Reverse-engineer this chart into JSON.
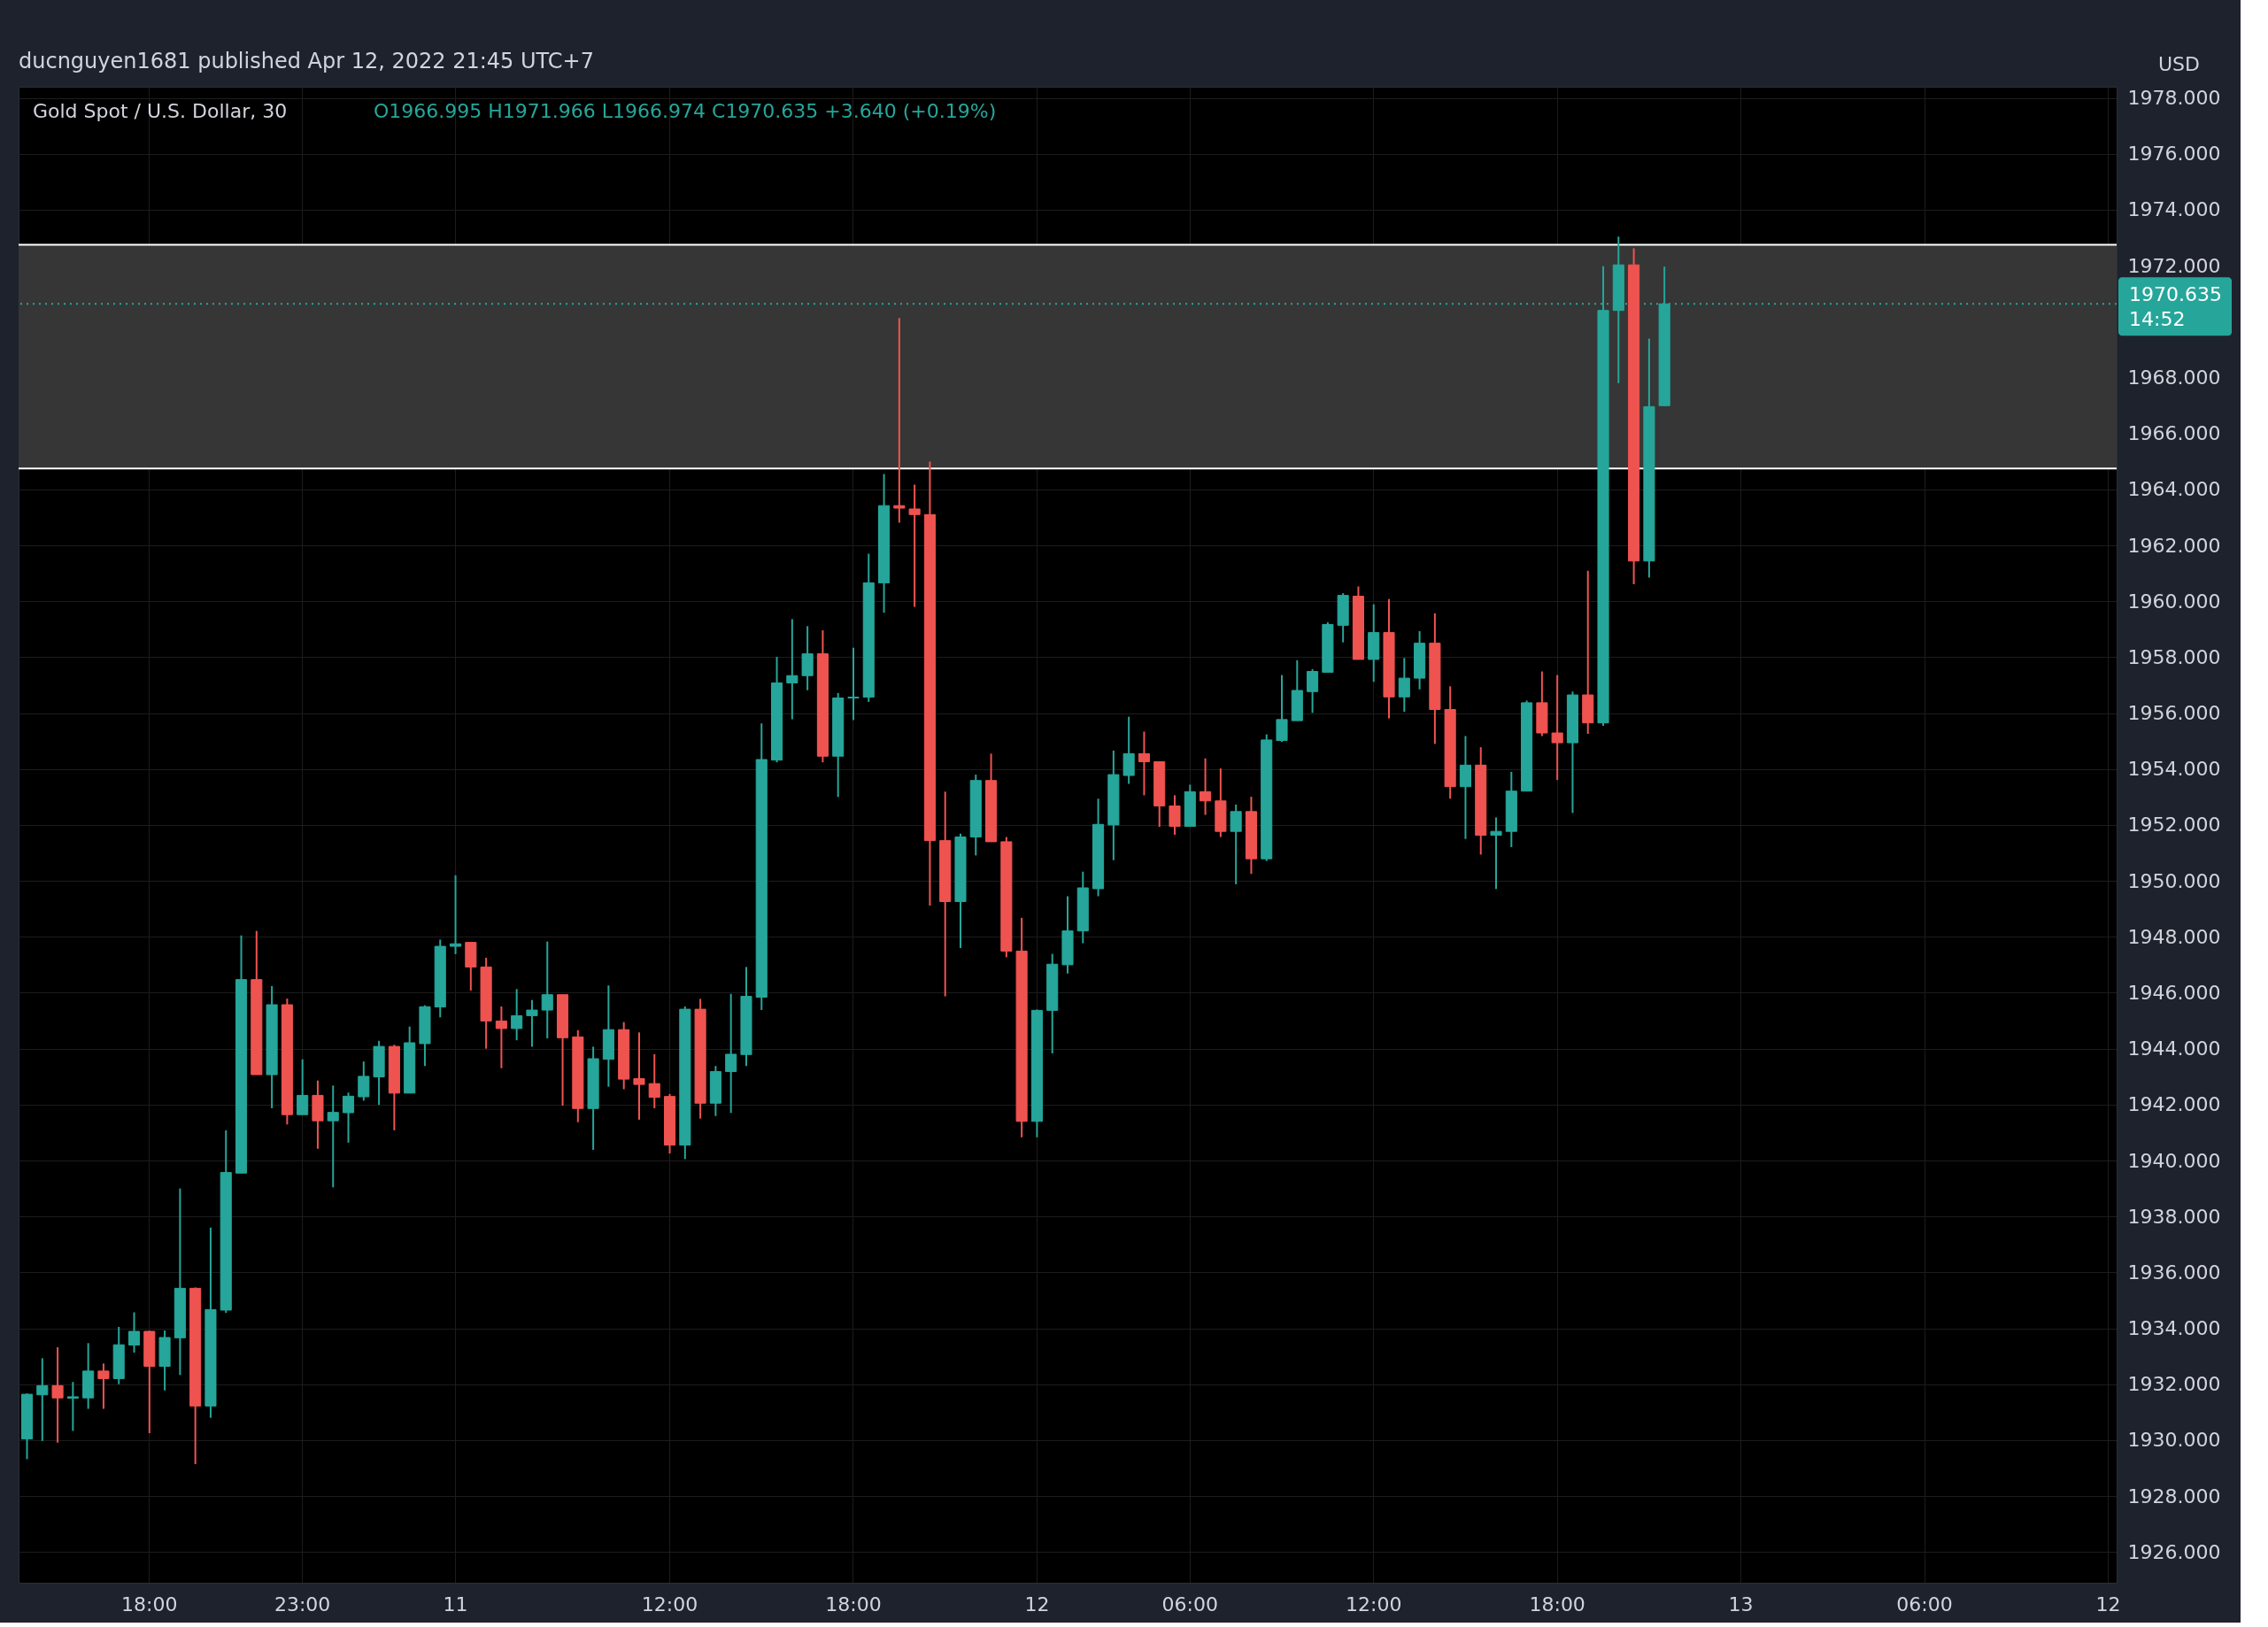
{
  "chart_data": {
    "type": "candlestick",
    "title": "Gold Spot / U.S. Dollar, 30",
    "subtitle": "O1966.995  H1971.966  L1966.974  C1970.635  +3.640 (+0.19%)",
    "ylabel": "USD",
    "annotations": [
      "ducnguyen1681 published Apr 12, 2022 21:45 UTC+7"
    ],
    "categories": [
      null,
      null,
      null,
      null,
      null,
      null,
      null,
      null,
      "18:00",
      null,
      null,
      null,
      null,
      null,
      null,
      null,
      null,
      null,
      "23:00",
      null,
      null,
      null,
      null,
      null,
      null,
      null,
      null,
      null,
      "11",
      null,
      null,
      null,
      null,
      null,
      null,
      null,
      null,
      null,
      null,
      null,
      null,
      null,
      "12:00",
      null,
      null,
      null,
      null,
      null,
      null,
      null,
      null,
      null,
      null,
      null,
      "18:00",
      null,
      null,
      null,
      null,
      null,
      null,
      null,
      null,
      null,
      null,
      null,
      "12",
      null,
      null,
      null,
      null,
      null,
      null,
      null,
      null,
      null,
      "06:00",
      null,
      null,
      null,
      null,
      null,
      null,
      null,
      null,
      null,
      null,
      null,
      "12:00",
      null,
      null,
      null,
      null,
      null,
      null,
      null,
      null,
      null,
      null,
      null,
      "18:00",
      null,
      null,
      null,
      null,
      null,
      null,
      null,
      null,
      null,
      null,
      null,
      "13",
      null,
      null,
      null,
      null,
      null,
      null,
      null,
      null,
      null,
      null,
      null,
      "06:00",
      null,
      null,
      null,
      null,
      null,
      null,
      null,
      null,
      null,
      null,
      null,
      "12"
    ],
    "ohlc": [
      [
        1930.04,
        1931.67,
        1929.32,
        1931.64
      ],
      [
        1931.62,
        1932.93,
        1929.97,
        1931.95
      ],
      [
        1931.95,
        1933.32,
        1929.91,
        1931.51
      ],
      [
        1931.5,
        1932.08,
        1930.33,
        1931.55
      ],
      [
        1931.51,
        1933.47,
        1931.12,
        1932.47
      ],
      [
        1932.47,
        1932.74,
        1931.12,
        1932.2
      ],
      [
        1932.2,
        1934.05,
        1932.0,
        1933.41
      ],
      [
        1933.4,
        1934.57,
        1933.13,
        1933.89
      ],
      [
        1933.89,
        1933.92,
        1930.25,
        1932.64
      ],
      [
        1932.64,
        1933.92,
        1931.78,
        1933.67
      ],
      [
        1933.66,
        1939.0,
        1932.33,
        1935.43
      ],
      [
        1935.43,
        1935.46,
        1929.14,
        1931.22
      ],
      [
        1931.22,
        1937.6,
        1930.8,
        1934.67
      ],
      [
        1934.65,
        1941.08,
        1934.55,
        1939.57
      ],
      [
        1939.55,
        1948.05,
        1939.55,
        1946.47
      ],
      [
        1946.47,
        1948.21,
        1943.07,
        1943.07
      ],
      [
        1943.07,
        1946.24,
        1941.87,
        1945.57
      ],
      [
        1945.57,
        1945.79,
        1941.29,
        1941.64
      ],
      [
        1941.64,
        1943.62,
        1941.64,
        1942.33
      ],
      [
        1942.33,
        1942.86,
        1940.42,
        1941.42
      ],
      [
        1941.42,
        1942.68,
        1939.04,
        1941.72
      ],
      [
        1941.71,
        1942.43,
        1940.64,
        1942.3
      ],
      [
        1942.28,
        1943.54,
        1942.14,
        1943.01
      ],
      [
        1942.99,
        1944.28,
        1941.99,
        1944.08
      ],
      [
        1944.08,
        1944.14,
        1941.08,
        1942.41
      ],
      [
        1942.41,
        1944.79,
        1942.41,
        1944.21
      ],
      [
        1944.18,
        1945.55,
        1943.38,
        1945.5
      ],
      [
        1945.49,
        1947.9,
        1945.12,
        1947.66
      ],
      [
        1947.66,
        1950.2,
        1947.38,
        1947.75
      ],
      [
        1947.8,
        1947.8,
        1946.08,
        1946.92
      ],
      [
        1946.92,
        1947.25,
        1944.0,
        1944.99
      ],
      [
        1944.99,
        1945.51,
        1943.3,
        1944.72
      ],
      [
        1944.72,
        1946.13,
        1944.3,
        1945.18
      ],
      [
        1945.18,
        1945.74,
        1944.07,
        1945.38
      ],
      [
        1945.38,
        1947.83,
        1944.37,
        1945.93
      ],
      [
        1945.93,
        1945.93,
        1941.96,
        1944.39
      ],
      [
        1944.42,
        1944.66,
        1941.37,
        1941.86
      ],
      [
        1941.86,
        1944.07,
        1940.38,
        1943.64
      ],
      [
        1943.62,
        1946.26,
        1942.64,
        1944.68
      ],
      [
        1944.68,
        1944.95,
        1942.55,
        1942.91
      ],
      [
        1942.93,
        1944.58,
        1941.46,
        1942.72
      ],
      [
        1942.75,
        1943.8,
        1941.87,
        1942.26
      ],
      [
        1942.29,
        1942.38,
        1940.25,
        1940.55
      ],
      [
        1940.55,
        1945.51,
        1940.05,
        1945.41
      ],
      [
        1945.41,
        1945.78,
        1941.5,
        1942.05
      ],
      [
        1942.05,
        1943.38,
        1941.59,
        1943.18
      ],
      [
        1943.18,
        1945.96,
        1941.7,
        1943.8
      ],
      [
        1943.79,
        1946.92,
        1943.38,
        1945.87
      ],
      [
        1945.84,
        1955.63,
        1945.38,
        1954.34
      ],
      [
        1954.32,
        1958.01,
        1954.24,
        1957.08
      ],
      [
        1957.08,
        1959.36,
        1955.78,
        1957.34
      ],
      [
        1957.34,
        1959.11,
        1956.82,
        1958.12
      ],
      [
        1958.12,
        1958.96,
        1954.24,
        1954.46
      ],
      [
        1954.46,
        1956.72,
        1953.0,
        1956.54
      ],
      [
        1956.54,
        1958.34,
        1955.75,
        1956.57
      ],
      [
        1956.57,
        1961.7,
        1956.4,
        1960.66
      ],
      [
        1960.66,
        1964.55,
        1959.59,
        1963.42
      ],
      [
        1963.42,
        1970.13,
        1962.81,
        1963.33
      ],
      [
        1963.3,
        1964.17,
        1959.8,
        1963.1
      ],
      [
        1963.1,
        1964.99,
        1949.12,
        1951.44
      ],
      [
        1951.44,
        1953.19,
        1945.87,
        1949.26
      ],
      [
        1949.26,
        1951.69,
        1947.6,
        1951.57
      ],
      [
        1951.57,
        1953.8,
        1950.91,
        1953.59
      ],
      [
        1953.59,
        1954.55,
        1951.4,
        1951.4
      ],
      [
        1951.4,
        1951.57,
        1947.27,
        1947.49
      ],
      [
        1947.49,
        1948.68,
        1940.83,
        1941.4
      ],
      [
        1941.4,
        1945.4,
        1940.83,
        1945.37
      ],
      [
        1945.37,
        1947.39,
        1943.83,
        1947.02
      ],
      [
        1947.0,
        1949.45,
        1946.69,
        1948.21
      ],
      [
        1948.21,
        1950.33,
        1947.77,
        1949.75
      ],
      [
        1949.72,
        1952.94,
        1949.45,
        1952.02
      ],
      [
        1952.0,
        1954.66,
        1950.74,
        1953.8
      ],
      [
        1953.77,
        1955.87,
        1953.47,
        1954.55
      ],
      [
        1954.55,
        1955.34,
        1953.06,
        1954.26
      ],
      [
        1954.26,
        1954.26,
        1951.93,
        1952.68
      ],
      [
        1952.68,
        1953.06,
        1951.65,
        1951.95
      ],
      [
        1951.95,
        1953.44,
        1951.95,
        1953.19
      ],
      [
        1953.19,
        1954.38,
        1952.36,
        1952.86
      ],
      [
        1952.86,
        1954.02,
        1951.57,
        1951.77
      ],
      [
        1951.77,
        1952.73,
        1949.88,
        1952.48
      ],
      [
        1952.48,
        1953.01,
        1950.25,
        1950.79
      ],
      [
        1950.79,
        1955.24,
        1950.71,
        1955.04
      ],
      [
        1955.02,
        1957.36,
        1954.97,
        1955.77
      ],
      [
        1955.73,
        1957.89,
        1955.73,
        1956.81
      ],
      [
        1956.77,
        1957.57,
        1956.01,
        1957.49
      ],
      [
        1957.46,
        1959.25,
        1957.46,
        1959.17
      ],
      [
        1959.14,
        1960.29,
        1958.53,
        1960.21
      ],
      [
        1960.18,
        1960.53,
        1957.92,
        1957.92
      ],
      [
        1957.92,
        1959.89,
        1957.12,
        1958.88
      ],
      [
        1958.88,
        1960.08,
        1955.81,
        1956.58
      ],
      [
        1956.58,
        1957.97,
        1956.05,
        1957.25
      ],
      [
        1957.25,
        1958.93,
        1956.85,
        1958.5
      ],
      [
        1958.5,
        1959.57,
        1954.9,
        1956.13
      ],
      [
        1956.13,
        1956.96,
        1952.94,
        1953.37
      ],
      [
        1953.37,
        1955.18,
        1951.5,
        1954.14
      ],
      [
        1954.14,
        1954.78,
        1950.94,
        1951.63
      ],
      [
        1951.63,
        1952.27,
        1949.71,
        1951.77
      ],
      [
        1951.77,
        1953.9,
        1951.21,
        1953.21
      ],
      [
        1953.21,
        1956.45,
        1953.21,
        1956.37
      ],
      [
        1956.37,
        1957.49,
        1955.18,
        1955.29
      ],
      [
        1955.29,
        1957.36,
        1953.61,
        1954.94
      ],
      [
        1954.94,
        1956.77,
        1952.43,
        1956.65
      ],
      [
        1956.65,
        1961.09,
        1955.26,
        1955.65
      ],
      [
        1955.65,
        1971.98,
        1955.54,
        1970.4
      ],
      [
        1970.4,
        1973.04,
        1967.8,
        1972.03
      ],
      [
        1972.03,
        1972.62,
        1960.61,
        1961.44
      ],
      [
        1961.44,
        1969.39,
        1960.85,
        1966.96
      ],
      [
        1966.995,
        1971.966,
        1966.974,
        1970.635
      ],
      null,
      null,
      null,
      null,
      null,
      null,
      null,
      null,
      null,
      null,
      null,
      null,
      null,
      null,
      null,
      null,
      null,
      null,
      null,
      null,
      null,
      null,
      null,
      null,
      null,
      null,
      null,
      null,
      null
    ],
    "colors": [
      "#26a69a",
      "#26a69a",
      "#ef5350",
      "#26a69a",
      "#26a69a",
      "#ef5350",
      "#26a69a",
      "#26a69a",
      "#ef5350",
      "#26a69a",
      "#26a69a",
      "#ef5350",
      "#26a69a",
      "#26a69a",
      "#26a69a",
      "#ef5350",
      "#26a69a",
      "#ef5350",
      "#26a69a",
      "#ef5350",
      "#26a69a",
      "#26a69a",
      "#26a69a",
      "#26a69a",
      "#ef5350",
      "#26a69a",
      "#26a69a",
      "#26a69a",
      "#26a69a",
      "#ef5350",
      "#ef5350",
      "#ef5350",
      "#26a69a",
      "#26a69a",
      "#26a69a",
      "#ef5350",
      "#ef5350",
      "#26a69a",
      "#26a69a",
      "#ef5350",
      "#ef5350",
      "#ef5350",
      "#ef5350",
      "#26a69a",
      "#ef5350",
      "#26a69a",
      "#26a69a",
      "#26a69a",
      "#26a69a",
      "#26a69a",
      "#26a69a",
      "#26a69a",
      "#ef5350",
      "#26a69a",
      "#26a69a",
      "#26a69a",
      "#26a69a",
      "#ef5350",
      "#ef5350",
      "#ef5350",
      "#ef5350",
      "#26a69a",
      "#26a69a",
      "#ef5350",
      "#ef5350",
      "#ef5350",
      "#26a69a",
      "#26a69a",
      "#26a69a",
      "#26a69a",
      "#26a69a",
      "#26a69a",
      "#26a69a",
      "#ef5350",
      "#ef5350",
      "#ef5350",
      "#26a69a",
      "#ef5350",
      "#ef5350",
      "#26a69a",
      "#ef5350",
      "#26a69a",
      "#26a69a",
      "#26a69a",
      "#26a69a",
      "#26a69a",
      "#26a69a",
      "#ef5350",
      "#26a69a",
      "#ef5350",
      "#26a69a",
      "#26a69a",
      "#ef5350",
      "#ef5350",
      "#26a69a",
      "#ef5350",
      "#26a69a",
      "#26a69a",
      "#26a69a",
      "#ef5350",
      "#ef5350",
      "#26a69a",
      "#ef5350",
      "#26a69a",
      "#26a69a",
      "#ef5350",
      "#26a69a",
      "#26a69a",
      null,
      null,
      null,
      null,
      null,
      null,
      null,
      null,
      null,
      null,
      null,
      null,
      null,
      null,
      null,
      null,
      null,
      null,
      null,
      null,
      null,
      null,
      null,
      null,
      null,
      null,
      null,
      null,
      null
    ],
    "ylim": [
      1924.9,
      1978.4
    ],
    "yticks": [
      {
        "value": 1926,
        "label": "1926.000"
      },
      {
        "value": 1928,
        "label": "1928.000"
      },
      {
        "value": 1930,
        "label": "1930.000"
      },
      {
        "value": 1932,
        "label": "1932.000"
      },
      {
        "value": 1934,
        "label": "1934.000"
      },
      {
        "value": 1936,
        "label": "1936.000"
      },
      {
        "value": 1938,
        "label": "1938.000"
      },
      {
        "value": 1940,
        "label": "1940.000"
      },
      {
        "value": 1942,
        "label": "1942.000"
      },
      {
        "value": 1944,
        "label": "1944.000"
      },
      {
        "value": 1946,
        "label": "1946.000"
      },
      {
        "value": 1948,
        "label": "1948.000"
      },
      {
        "value": 1950,
        "label": "1950.000"
      },
      {
        "value": 1952,
        "label": "1952.000"
      },
      {
        "value": 1954,
        "label": "1954.000"
      },
      {
        "value": 1956,
        "label": "1956.000"
      },
      {
        "value": 1958,
        "label": "1958.000"
      },
      {
        "value": 1960,
        "label": "1960.000"
      },
      {
        "value": 1962,
        "label": "1962.000"
      },
      {
        "value": 1964,
        "label": "1964.000"
      },
      {
        "value": 1966,
        "label": "1966.000"
      },
      {
        "value": 1968,
        "label": "1968.000"
      },
      {
        "value": 1972,
        "label": "1972.000"
      },
      {
        "value": 1974,
        "label": "1974.000"
      },
      {
        "value": 1976,
        "label": "1976.000"
      },
      {
        "value": 1978,
        "label": "1978.000"
      }
    ],
    "grid": true,
    "bands": [
      {
        "axis": "y",
        "from": 1964.75,
        "to": 1972.75,
        "color": "#363636"
      }
    ],
    "ref_lines": [
      {
        "axis": "y",
        "value": 1972.75,
        "color": "#ffffff",
        "line_style": "solid"
      },
      {
        "axis": "y",
        "value": 1964.75,
        "color": "#ffffff",
        "line_style": "solid"
      },
      {
        "axis": "y",
        "value": 1970.635,
        "label": "1970.635\n14:52",
        "color": "#26a69a",
        "line_style": "dotted"
      }
    ]
  }
}
